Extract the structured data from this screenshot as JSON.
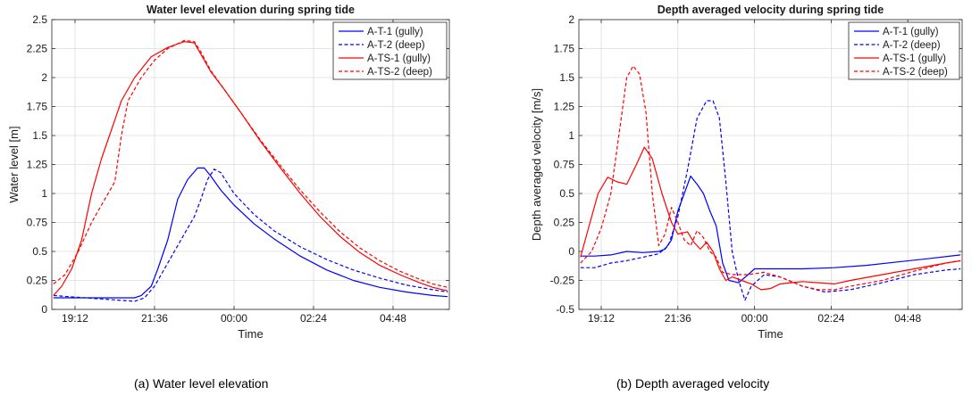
{
  "captions": {
    "a": "(a) Water level elevation",
    "b": "(b) Depth averaged velocity"
  },
  "chart_data": [
    {
      "type": "line",
      "title": "Water level elevation during spring tide",
      "xlabel": "Time",
      "ylabel": "Water level [m]",
      "xlim": [
        18.5,
        30.5
      ],
      "ylim": [
        0,
        2.5
      ],
      "xticks": [
        19.2,
        21.6,
        24.0,
        26.4,
        28.8
      ],
      "xtick_labels": [
        "19:12",
        "21:36",
        "00:00",
        "02:24",
        "04:48"
      ],
      "yticks": [
        0,
        0.25,
        0.5,
        0.75,
        1,
        1.25,
        1.5,
        1.75,
        2,
        2.25,
        2.5
      ],
      "ytick_labels": [
        "0",
        "0.25",
        "0.5",
        "0.75",
        "1",
        "1.25",
        "1.5",
        "1.75",
        "2",
        "2.25",
        "2.5"
      ],
      "grid": true,
      "legend_position": "top-right",
      "series": [
        {
          "name": "A-T-1 (gully)",
          "color": "#0000ff",
          "dash": "solid",
          "points": [
            [
              18.55,
              0.1
            ],
            [
              19.0,
              0.1
            ],
            [
              20.0,
              0.1
            ],
            [
              21.0,
              0.1
            ],
            [
              21.2,
              0.12
            ],
            [
              21.5,
              0.2
            ],
            [
              21.7,
              0.35
            ],
            [
              22.0,
              0.6
            ],
            [
              22.3,
              0.95
            ],
            [
              22.6,
              1.12
            ],
            [
              22.9,
              1.22
            ],
            [
              23.1,
              1.22
            ],
            [
              23.3,
              1.15
            ],
            [
              23.6,
              1.03
            ],
            [
              24.0,
              0.9
            ],
            [
              24.6,
              0.74
            ],
            [
              25.2,
              0.61
            ],
            [
              26.0,
              0.46
            ],
            [
              26.8,
              0.34
            ],
            [
              27.6,
              0.25
            ],
            [
              28.4,
              0.19
            ],
            [
              29.2,
              0.15
            ],
            [
              30.0,
              0.12
            ],
            [
              30.45,
              0.11
            ]
          ]
        },
        {
          "name": "A-T-2 (deep)",
          "color": "#0000ff",
          "dash": "dashed",
          "points": [
            [
              18.55,
              0.12
            ],
            [
              19.0,
              0.11
            ],
            [
              19.5,
              0.1
            ],
            [
              20.0,
              0.09
            ],
            [
              20.5,
              0.08
            ],
            [
              21.0,
              0.07
            ],
            [
              21.3,
              0.1
            ],
            [
              21.6,
              0.2
            ],
            [
              21.9,
              0.35
            ],
            [
              22.2,
              0.5
            ],
            [
              22.5,
              0.65
            ],
            [
              22.8,
              0.8
            ],
            [
              23.0,
              0.95
            ],
            [
              23.2,
              1.12
            ],
            [
              23.4,
              1.21
            ],
            [
              23.6,
              1.18
            ],
            [
              24.0,
              1.0
            ],
            [
              24.6,
              0.82
            ],
            [
              25.2,
              0.68
            ],
            [
              26.0,
              0.54
            ],
            [
              26.8,
              0.43
            ],
            [
              27.6,
              0.34
            ],
            [
              28.4,
              0.27
            ],
            [
              29.2,
              0.21
            ],
            [
              30.0,
              0.17
            ],
            [
              30.45,
              0.15
            ]
          ]
        },
        {
          "name": "A-TS-1 (gully)",
          "color": "#ff0000",
          "dash": "solid",
          "points": [
            [
              18.55,
              0.12
            ],
            [
              18.8,
              0.2
            ],
            [
              19.1,
              0.35
            ],
            [
              19.4,
              0.6
            ],
            [
              19.7,
              1.0
            ],
            [
              20.0,
              1.3
            ],
            [
              20.3,
              1.55
            ],
            [
              20.6,
              1.8
            ],
            [
              21.0,
              2.0
            ],
            [
              21.5,
              2.18
            ],
            [
              22.0,
              2.26
            ],
            [
              22.5,
              2.31
            ],
            [
              22.8,
              2.3
            ],
            [
              23.0,
              2.2
            ],
            [
              23.3,
              2.05
            ],
            [
              23.7,
              1.9
            ],
            [
              24.2,
              1.7
            ],
            [
              24.8,
              1.45
            ],
            [
              25.4,
              1.22
            ],
            [
              26.0,
              1.0
            ],
            [
              26.6,
              0.8
            ],
            [
              27.2,
              0.63
            ],
            [
              27.8,
              0.49
            ],
            [
              28.4,
              0.38
            ],
            [
              29.0,
              0.3
            ],
            [
              29.6,
              0.23
            ],
            [
              30.0,
              0.19
            ],
            [
              30.45,
              0.16
            ]
          ]
        },
        {
          "name": "A-TS-2 (deep)",
          "color": "#ff0000",
          "dash": "dashed",
          "points": [
            [
              18.55,
              0.22
            ],
            [
              18.9,
              0.3
            ],
            [
              19.3,
              0.5
            ],
            [
              19.7,
              0.75
            ],
            [
              20.1,
              0.95
            ],
            [
              20.4,
              1.1
            ],
            [
              20.6,
              1.5
            ],
            [
              20.8,
              1.8
            ],
            [
              21.2,
              2.0
            ],
            [
              21.6,
              2.15
            ],
            [
              22.0,
              2.25
            ],
            [
              22.5,
              2.32
            ],
            [
              22.8,
              2.31
            ],
            [
              23.0,
              2.22
            ],
            [
              23.3,
              2.06
            ],
            [
              23.7,
              1.9
            ],
            [
              24.2,
              1.7
            ],
            [
              24.8,
              1.46
            ],
            [
              25.4,
              1.24
            ],
            [
              26.0,
              1.03
            ],
            [
              26.6,
              0.84
            ],
            [
              27.2,
              0.67
            ],
            [
              27.8,
              0.53
            ],
            [
              28.4,
              0.42
            ],
            [
              29.0,
              0.33
            ],
            [
              29.6,
              0.26
            ],
            [
              30.0,
              0.22
            ],
            [
              30.45,
              0.19
            ]
          ]
        }
      ]
    },
    {
      "type": "line",
      "title": "Depth averaged velocity during spring tide",
      "xlabel": "Time",
      "ylabel": "Depth averaged velocity [m/s]",
      "xlim": [
        18.5,
        30.5
      ],
      "ylim": [
        -0.5,
        2
      ],
      "xticks": [
        19.2,
        21.6,
        24.0,
        26.4,
        28.8
      ],
      "xtick_labels": [
        "19:12",
        "21:36",
        "00:00",
        "02:24",
        "04:48"
      ],
      "yticks": [
        -0.5,
        -0.25,
        0,
        0.25,
        0.5,
        0.75,
        1,
        1.25,
        1.5,
        1.75,
        2
      ],
      "ytick_labels": [
        "-0.5",
        "-0.25",
        "0",
        "0.25",
        "0.5",
        "0.75",
        "1",
        "1.25",
        "1.5",
        "1.75",
        "2"
      ],
      "grid": true,
      "legend_position": "top-right",
      "series": [
        {
          "name": "A-T-1 (gully)",
          "color": "#0000ff",
          "dash": "solid",
          "points": [
            [
              18.55,
              -0.04
            ],
            [
              19.0,
              -0.04
            ],
            [
              19.5,
              -0.03
            ],
            [
              20.0,
              0.0
            ],
            [
              20.5,
              -0.01
            ],
            [
              21.0,
              0.0
            ],
            [
              21.2,
              0.02
            ],
            [
              21.4,
              0.1
            ],
            [
              21.6,
              0.35
            ],
            [
              21.8,
              0.5
            ],
            [
              22.0,
              0.65
            ],
            [
              22.2,
              0.58
            ],
            [
              22.4,
              0.5
            ],
            [
              22.6,
              0.35
            ],
            [
              22.8,
              0.22
            ],
            [
              23.0,
              -0.1
            ],
            [
              23.2,
              -0.25
            ],
            [
              23.5,
              -0.27
            ],
            [
              23.8,
              -0.2
            ],
            [
              24.0,
              -0.15
            ],
            [
              24.3,
              -0.15
            ],
            [
              24.8,
              -0.15
            ],
            [
              25.5,
              -0.15
            ],
            [
              26.5,
              -0.14
            ],
            [
              27.5,
              -0.12
            ],
            [
              28.5,
              -0.09
            ],
            [
              29.5,
              -0.06
            ],
            [
              30.45,
              -0.03
            ]
          ]
        },
        {
          "name": "A-T-2 (deep)",
          "color": "#0000ff",
          "dash": "dashed",
          "points": [
            [
              18.55,
              -0.14
            ],
            [
              19.0,
              -0.14
            ],
            [
              19.5,
              -0.1
            ],
            [
              20.0,
              -0.08
            ],
            [
              20.5,
              -0.05
            ],
            [
              21.0,
              -0.02
            ],
            [
              21.3,
              0.05
            ],
            [
              21.6,
              0.3
            ],
            [
              21.9,
              0.7
            ],
            [
              22.2,
              1.15
            ],
            [
              22.5,
              1.3
            ],
            [
              22.7,
              1.3
            ],
            [
              22.9,
              1.15
            ],
            [
              23.1,
              0.6
            ],
            [
              23.3,
              0.0
            ],
            [
              23.5,
              -0.25
            ],
            [
              23.7,
              -0.42
            ],
            [
              23.9,
              -0.3
            ],
            [
              24.3,
              -0.2
            ],
            [
              24.8,
              -0.22
            ],
            [
              25.5,
              -0.3
            ],
            [
              26.2,
              -0.35
            ],
            [
              27.0,
              -0.33
            ],
            [
              28.0,
              -0.27
            ],
            [
              29.0,
              -0.2
            ],
            [
              30.0,
              -0.16
            ],
            [
              30.45,
              -0.15
            ]
          ]
        },
        {
          "name": "A-TS-1 (gully)",
          "color": "#ff0000",
          "dash": "solid",
          "points": [
            [
              18.55,
              -0.05
            ],
            [
              18.8,
              0.2
            ],
            [
              19.1,
              0.5
            ],
            [
              19.4,
              0.64
            ],
            [
              19.7,
              0.6
            ],
            [
              20.0,
              0.58
            ],
            [
              20.3,
              0.75
            ],
            [
              20.55,
              0.9
            ],
            [
              20.8,
              0.8
            ],
            [
              21.1,
              0.5
            ],
            [
              21.4,
              0.25
            ],
            [
              21.6,
              0.15
            ],
            [
              21.9,
              0.17
            ],
            [
              22.1,
              0.08
            ],
            [
              22.3,
              0.02
            ],
            [
              22.5,
              0.08
            ],
            [
              22.7,
              0.0
            ],
            [
              22.9,
              -0.15
            ],
            [
              23.1,
              -0.25
            ],
            [
              23.3,
              -0.22
            ],
            [
              23.6,
              -0.25
            ],
            [
              23.9,
              -0.28
            ],
            [
              24.2,
              -0.33
            ],
            [
              24.5,
              -0.32
            ],
            [
              24.8,
              -0.28
            ],
            [
              25.5,
              -0.26
            ],
            [
              26.0,
              -0.27
            ],
            [
              26.5,
              -0.28
            ],
            [
              27.0,
              -0.25
            ],
            [
              28.0,
              -0.2
            ],
            [
              29.0,
              -0.15
            ],
            [
              30.0,
              -0.1
            ],
            [
              30.45,
              -0.08
            ]
          ]
        },
        {
          "name": "A-TS-2 (deep)",
          "color": "#ff0000",
          "dash": "dashed",
          "points": [
            [
              18.55,
              -0.1
            ],
            [
              18.9,
              0.0
            ],
            [
              19.2,
              0.2
            ],
            [
              19.5,
              0.5
            ],
            [
              19.8,
              1.1
            ],
            [
              20.0,
              1.5
            ],
            [
              20.2,
              1.6
            ],
            [
              20.4,
              1.53
            ],
            [
              20.6,
              1.2
            ],
            [
              20.8,
              0.5
            ],
            [
              21.0,
              0.05
            ],
            [
              21.2,
              0.15
            ],
            [
              21.4,
              0.38
            ],
            [
              21.6,
              0.25
            ],
            [
              21.8,
              0.1
            ],
            [
              22.0,
              0.05
            ],
            [
              22.2,
              0.18
            ],
            [
              22.4,
              0.12
            ],
            [
              22.6,
              0.0
            ],
            [
              22.8,
              -0.05
            ],
            [
              23.0,
              -0.18
            ],
            [
              23.3,
              -0.2
            ],
            [
              23.8,
              -0.2
            ],
            [
              24.3,
              -0.18
            ],
            [
              24.8,
              -0.22
            ],
            [
              25.5,
              -0.3
            ],
            [
              26.0,
              -0.33
            ],
            [
              26.5,
              -0.33
            ],
            [
              27.0,
              -0.3
            ],
            [
              28.0,
              -0.25
            ],
            [
              29.0,
              -0.17
            ],
            [
              30.0,
              -0.1
            ],
            [
              30.45,
              -0.08
            ]
          ]
        }
      ]
    }
  ]
}
